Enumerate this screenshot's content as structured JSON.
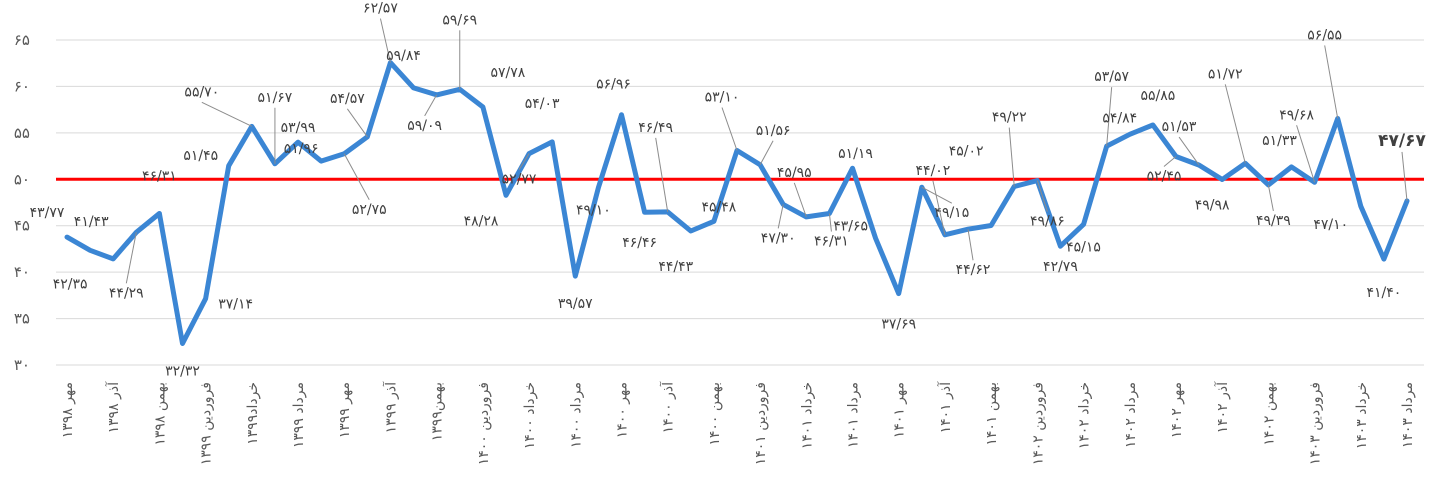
{
  "chart_data": {
    "type": "line",
    "title": "",
    "xlabel": "",
    "ylabel": "",
    "ylim": [
      30,
      65
    ],
    "yticks": [
      "۳۰",
      "۳۵",
      "۴۰",
      "۴۵",
      "۵۰",
      "۵۵",
      "۶۰",
      "۶۵"
    ],
    "grid": true,
    "reference_line": {
      "value": 50,
      "color": "#ff0000"
    },
    "line_color": "#3b86d4",
    "x_tick_labels": [
      "مهر ۱۳۹۸",
      "آذر ۱۳۹۸",
      "بهمن ۱۳۹۸",
      "فروردین ۱۳۹۹",
      "خرداد۱۳۹۹",
      "مرداد ۱۳۹۹",
      "مهر ۱۳۹۹",
      "آذر ۱۳۹۹",
      "بهمن۱۳۹۹",
      "فروردین ۱۴۰۰",
      "خرداد ۱۴۰۰",
      "مرداد ۱۴۰۰",
      "مهر ۱۴۰۰",
      "آذر ۱۴۰۰",
      "بهمن ۱۴۰۰",
      "فروردین ۱۴۰۱",
      "خرداد ۱۴۰۱",
      "مرداد ۱۴۰۱",
      "مهر ۱۴۰۱",
      "آذر ۱۴۰۱",
      "بهمن ۱۴۰۱",
      "فروردین ۱۴۰۲",
      "خرداد ۱۴۰۲",
      "مرداد ۱۴۰۲",
      "مهر ۱۴۰۲",
      "آذر ۱۴۰۲",
      "بهمن ۱۴۰۲",
      "فروردین ۱۴۰۳",
      "خرداد ۱۴۰۳",
      "مرداد ۱۴۰۳"
    ],
    "values": [
      43.77,
      42.35,
      41.43,
      44.29,
      46.31,
      32.32,
      37.14,
      51.45,
      55.7,
      51.67,
      53.99,
      51.96,
      52.75,
      54.57,
      62.57,
      59.84,
      59.09,
      59.69,
      57.78,
      48.28,
      52.77,
      54.03,
      39.57,
      49.1,
      56.96,
      46.46,
      46.49,
      44.43,
      45.48,
      53.1,
      51.56,
      47.3,
      45.95,
      46.31,
      51.19,
      43.65,
      37.69,
      49.15,
      44.02,
      44.62,
      45.02,
      49.22,
      49.86,
      42.79,
      45.15,
      53.57,
      54.84,
      55.85,
      52.45,
      51.53,
      49.98,
      51.72,
      49.39,
      51.33,
      49.68,
      56.55,
      47.1,
      41.4,
      47.67
    ],
    "data_labels": [
      "۴۳/۷۷",
      "۴۲/۳۵",
      "۴۱/۴۳",
      "۴۴/۲۹",
      "۴۶/۳۱",
      "۳۲/۳۲",
      "۳۷/۱۴",
      "۵۱/۴۵",
      "۵۵/۷۰",
      "۵۱/۶۷",
      "۵۳/۹۹",
      "۵۱/۹۶",
      "۵۲/۷۵",
      "۵۴/۵۷",
      "۶۲/۵۷",
      "۵۹/۸۴",
      "۵۹/۰۹",
      "۵۹/۶۹",
      "۵۷/۷۸",
      "۴۸/۲۸",
      "۵۲/۷۷",
      "۵۴/۰۳",
      "۳۹/۵۷",
      "۴۹/۱۰",
      "۵۶/۹۶",
      "۴۶/۴۶",
      "۴۶/۴۹",
      "۴۴/۴۳",
      "۴۵/۴۸",
      "۵۳/۱۰",
      "۵۱/۵۶",
      "۴۷/۳۰",
      "۴۵/۹۵",
      "۴۶/۳۱",
      "۵۱/۱۹",
      "۴۳/۶۵",
      "۳۷/۶۹",
      "۴۹/۱۵",
      "۴۴/۰۲",
      "۴۴/۶۲",
      "۴۵/۰۲",
      "۴۹/۲۲",
      "۴۹/۸۶",
      "۴۲/۷۹",
      "۴۵/۱۵",
      "۵۳/۵۷",
      "۵۴/۸۴",
      "۵۵/۸۵",
      "۵۲/۴۵",
      "۵۱/۵۳",
      "۴۹/۹۸",
      "۵۱/۷۲",
      "۴۹/۳۹",
      "۵۱/۳۳",
      "۴۹/۶۸",
      "۵۶/۵۵",
      "۴۷/۱۰",
      "۴۱/۴۰",
      "۴۷/۶۷"
    ]
  }
}
